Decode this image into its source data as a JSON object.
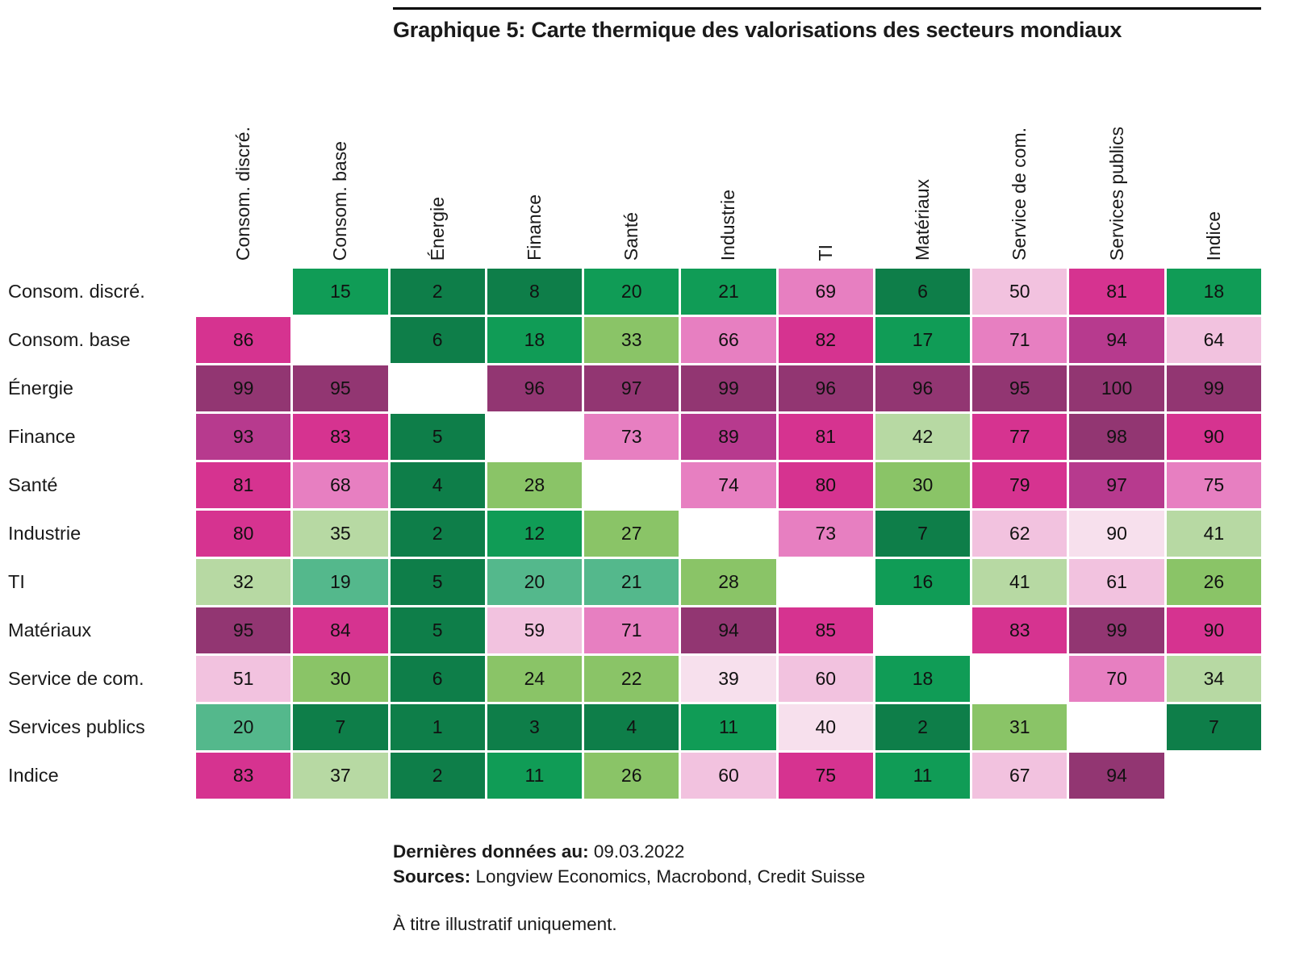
{
  "footer": {
    "last_data_label": "Dernières données au:",
    "last_data_value": " 09.03.2022",
    "sources_label": "Sources:",
    "sources_value": " Longview Economics, Macrobond, Credit Suisse",
    "disclaimer": "À titre illustratif uniquement."
  },
  "chart_data": {
    "type": "heatmap",
    "title": "Graphique 5: Carte thermique des valorisations des secteurs mondiaux",
    "columns": [
      "Consom. discré.",
      "Consom. base",
      "Énergie",
      "Finance",
      "Santé",
      "Industrie",
      "TI",
      "Matériaux",
      "Service de com.",
      "Services publics",
      "Indice"
    ],
    "rows": [
      "Consom. discré.",
      "Consom. base",
      "Énergie",
      "Finance",
      "Santé",
      "Industrie",
      "TI",
      "Matériaux",
      "Service de com.",
      "Services publics",
      "Indice"
    ],
    "values": [
      [
        null,
        15,
        2,
        8,
        20,
        21,
        69,
        6,
        50,
        81,
        18
      ],
      [
        86,
        null,
        6,
        18,
        33,
        66,
        82,
        17,
        71,
        94,
        64
      ],
      [
        99,
        95,
        null,
        96,
        97,
        99,
        96,
        96,
        95,
        100,
        99
      ],
      [
        93,
        83,
        5,
        null,
        73,
        89,
        81,
        42,
        77,
        98,
        90
      ],
      [
        81,
        68,
        4,
        28,
        null,
        74,
        80,
        30,
        79,
        97,
        75
      ],
      [
        80,
        35,
        2,
        12,
        27,
        null,
        73,
        7,
        62,
        90,
        41
      ],
      [
        32,
        19,
        5,
        20,
        21,
        28,
        null,
        16,
        41,
        61,
        26
      ],
      [
        95,
        84,
        5,
        59,
        71,
        94,
        85,
        null,
        83,
        99,
        90
      ],
      [
        51,
        30,
        6,
        24,
        22,
        39,
        60,
        18,
        null,
        70,
        34
      ],
      [
        20,
        7,
        1,
        3,
        4,
        11,
        40,
        2,
        31,
        null,
        7
      ],
      [
        83,
        37,
        2,
        11,
        26,
        60,
        75,
        11,
        67,
        94,
        null
      ]
    ],
    "cell_colors": [
      [
        null,
        "mg",
        "dg",
        "dg",
        "mg",
        "mg",
        "mp",
        "dg",
        "pp",
        "sm",
        "mg"
      ],
      [
        "sm",
        null,
        "dg",
        "mg",
        "lg",
        "mp",
        "sm",
        "mg",
        "mp",
        "pm",
        "pp"
      ],
      [
        "dp",
        "dp",
        null,
        "dp",
        "dp",
        "dp",
        "dp",
        "dp",
        "dp",
        "dp",
        "dp"
      ],
      [
        "pm",
        "sm",
        "dg",
        null,
        "mp",
        "pm",
        "sm",
        "pg",
        "sm",
        "dp",
        "sm"
      ],
      [
        "sm",
        "mp",
        "dg",
        "lg",
        null,
        "mp",
        "sm",
        "lg",
        "sm",
        "pm",
        "mp"
      ],
      [
        "sm",
        "pg",
        "dg",
        "mg",
        "lg",
        null,
        "mp",
        "dg",
        "pp",
        "vpp",
        "pg"
      ],
      [
        "pg",
        "sg",
        "dg",
        "sg",
        "sg",
        "lg",
        null,
        "mg",
        "pg",
        "pp",
        "lg"
      ],
      [
        "dp",
        "sm",
        "dg",
        "pp",
        "mp",
        "dp",
        "sm",
        null,
        "sm",
        "dp",
        "sm"
      ],
      [
        "pp",
        "lg",
        "dg",
        "lg",
        "lg",
        "vpp",
        "pp",
        "mg",
        null,
        "mp",
        "pg"
      ],
      [
        "sg",
        "dg",
        "dg",
        "dg",
        "dg",
        "mg",
        "vpp",
        "dg",
        "lg",
        null,
        "dg"
      ],
      [
        "sm",
        "pg",
        "dg",
        "mg",
        "lg",
        "pp",
        "sm",
        "mg",
        "pp",
        "dp",
        null
      ]
    ],
    "palette": {
      "dg": "#0e7e49",
      "mg": "#109c56",
      "sg": "#54b88c",
      "lg": "#8ac467",
      "pg": "#b7d9a3",
      "vpp": "#f7e0ed",
      "pp": "#f2c2df",
      "mp": "#e77fc1",
      "sm": "#d63390",
      "pm": "#b73a8e",
      "dp": "#923672"
    },
    "legend": "none",
    "grid": "white 3px gaps between cells, diagonal cells blank"
  }
}
